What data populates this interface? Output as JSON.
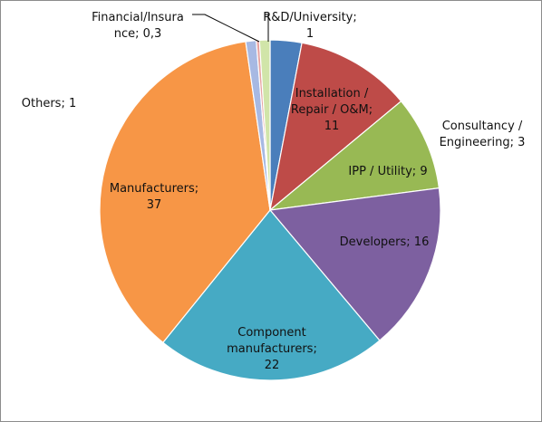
{
  "chart_data": {
    "type": "pie",
    "title": "",
    "slices": [
      {
        "name": "Consultancy / Engineering",
        "value": 3,
        "color": "#4a7ebb",
        "lines": []
      },
      {
        "name": "Installation / Repair / O&M",
        "value": 11,
        "color": "#be4b48",
        "lines": [
          "Installation /",
          "Repair / O&M;",
          "11"
        ]
      },
      {
        "name": "IPP / Utility",
        "value": 9,
        "color": "#98b954",
        "lines": [
          "IPP / Utility; 9"
        ]
      },
      {
        "name": "Developers",
        "value": 16,
        "color": "#7d60a0",
        "lines": [
          "Developers; 16"
        ]
      },
      {
        "name": "Component manufacturers",
        "value": 22,
        "color": "#46aac4",
        "lines": [
          "Component",
          "manufacturers;",
          "22"
        ]
      },
      {
        "name": "Manufacturers",
        "value": 37,
        "color": "#f79646",
        "lines": [
          "Manufacturers;",
          "37"
        ]
      },
      {
        "name": "Others",
        "value": 1,
        "color": "#a7b9e3",
        "lines": []
      },
      {
        "name": "Financial/Insurance",
        "value": 0.3,
        "color": "#e6a3a1",
        "lines": []
      },
      {
        "name": "R&D/University",
        "value": 1,
        "color": "#d1e5a9",
        "lines": []
      }
    ],
    "outside_labels": [
      {
        "key": "consultancy",
        "lines": [
          "Consultancy /",
          "Engineering; 3"
        ]
      },
      {
        "key": "others",
        "lines": [
          "Others; 1"
        ]
      },
      {
        "key": "financial",
        "lines": [
          "Financial/Insura",
          "nce; 0,3"
        ]
      },
      {
        "key": "rnd",
        "lines": [
          "R&D/University;",
          "1"
        ]
      }
    ]
  }
}
